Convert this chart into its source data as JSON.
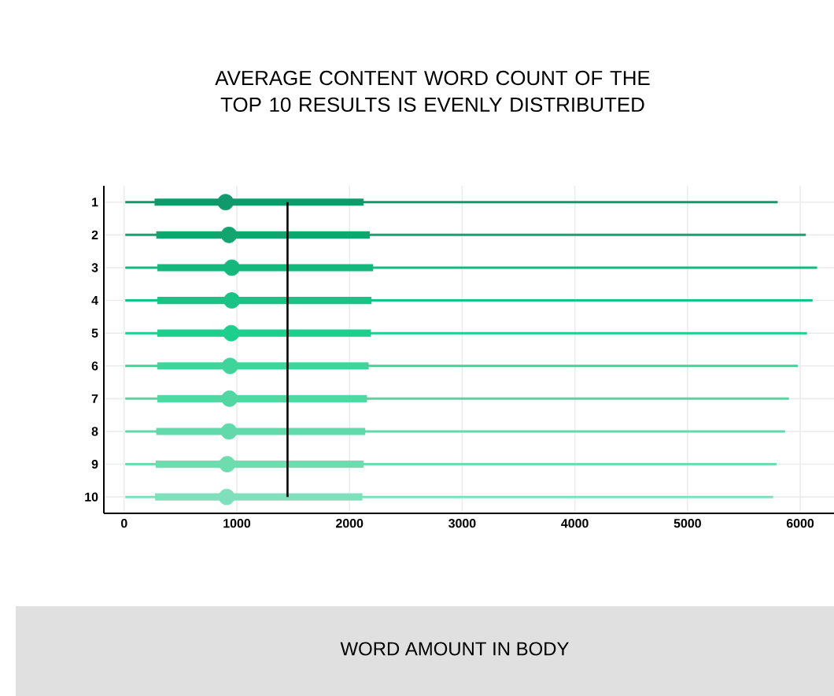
{
  "chart_data": {
    "type": "box",
    "title": "AVERAGE CONTENT WORD COUNT OF THE TOP 10 RESULTS IS EVENLY DISTRIBUTED",
    "annotations": [
      "WORD AMOUNT IN BODY"
    ],
    "orientation": "horizontal",
    "categories": [
      "1",
      "2",
      "3",
      "4",
      "5",
      "6",
      "7",
      "8",
      "9",
      "10"
    ],
    "boxes": [
      {
        "low": 10,
        "q1": 270,
        "median": 900,
        "q3": 2125,
        "high": 5800
      },
      {
        "low": 10,
        "q1": 285,
        "median": 930,
        "q3": 2180,
        "high": 6050
      },
      {
        "low": 10,
        "q1": 295,
        "median": 955,
        "q3": 2210,
        "high": 6150
      },
      {
        "low": 10,
        "q1": 295,
        "median": 955,
        "q3": 2195,
        "high": 6110
      },
      {
        "low": 10,
        "q1": 295,
        "median": 950,
        "q3": 2190,
        "high": 6060
      },
      {
        "low": 10,
        "q1": 295,
        "median": 940,
        "q3": 2170,
        "high": 5980
      },
      {
        "low": 10,
        "q1": 295,
        "median": 935,
        "q3": 2155,
        "high": 5900
      },
      {
        "low": 10,
        "q1": 285,
        "median": 930,
        "q3": 2140,
        "high": 5865
      },
      {
        "low": 10,
        "q1": 280,
        "median": 915,
        "q3": 2125,
        "high": 5790
      },
      {
        "low": 10,
        "q1": 275,
        "median": 910,
        "q3": 2115,
        "high": 5760
      }
    ],
    "colors": [
      "#10996a",
      "#12a570",
      "#14b87c",
      "#17c485",
      "#1ccf8c",
      "#3ed49a",
      "#52d6a2",
      "#62d9aa",
      "#6fdcb0",
      "#80e0bb"
    ],
    "xlim": [
      -180,
      6300
    ],
    "xticks": [
      0,
      1000,
      2000,
      3000,
      4000,
      5000,
      6000
    ],
    "ref_lines": [
      {
        "axis": "x",
        "value": 1450,
        "color": "#000000"
      }
    ],
    "grid": true,
    "marker": "circle"
  }
}
